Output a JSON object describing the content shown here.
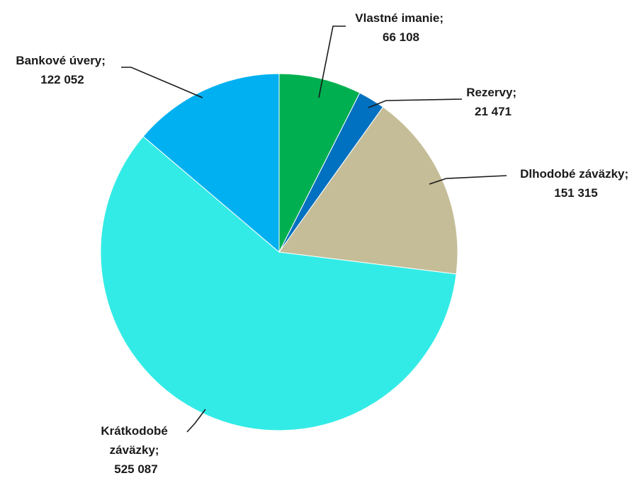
{
  "chart_data": {
    "type": "pie",
    "title": "",
    "legend": "none",
    "slices": [
      {
        "name": "Vlastné imanie",
        "value": 66108,
        "display": "66 108",
        "color": "#00b050"
      },
      {
        "name": "Rezervy",
        "value": 21471,
        "display": "21 471",
        "color": "#0070c0"
      },
      {
        "name": "Dlhodobé záväzky",
        "value": 151315,
        "display": "151 315",
        "color": "#c4bd97"
      },
      {
        "name": "Krátkodobé záväzky",
        "value": 525087,
        "display": "525 087",
        "color": "#33ebe6"
      },
      {
        "name": "Bankové úvery",
        "value": 122052,
        "display": "122 052",
        "color": "#00b0f0"
      }
    ],
    "labels": [
      {
        "lines": [
          "Vlastné imanie;",
          "66 108"
        ]
      },
      {
        "lines": [
          "Rezervy;",
          "21 471"
        ]
      },
      {
        "lines": [
          "Dlhodobé záväzky;",
          "151 315"
        ]
      },
      {
        "lines": [
          "Krátkodobé",
          "záväzky;",
          "525 087"
        ]
      },
      {
        "lines": [
          "Bankové úvery;",
          "122 052"
        ]
      }
    ]
  }
}
